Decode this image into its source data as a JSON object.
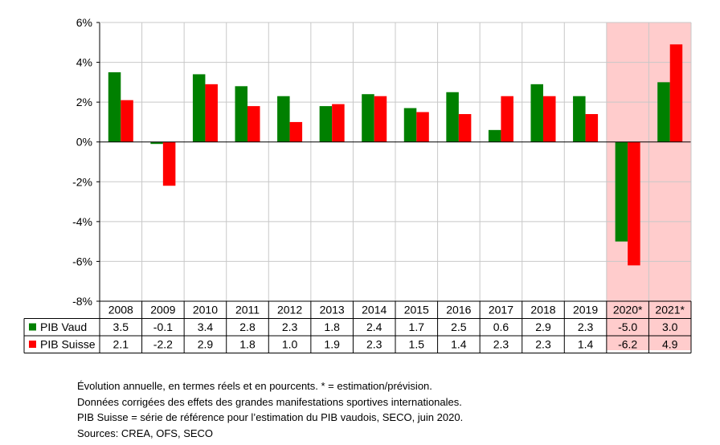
{
  "chart_data": {
    "type": "bar",
    "categories": [
      "2008",
      "2009",
      "2010",
      "2011",
      "2012",
      "2013",
      "2014",
      "2015",
      "2016",
      "2017",
      "2018",
      "2019",
      "2020*",
      "2021*"
    ],
    "series": [
      {
        "name": "PIB Vaud",
        "color": "#008000",
        "values": [
          3.5,
          -0.1,
          3.4,
          2.8,
          2.3,
          1.8,
          2.4,
          1.7,
          2.5,
          0.6,
          2.9,
          2.3,
          -5.0,
          3.0
        ],
        "labels": [
          "3.5",
          "-0.1",
          "3.4",
          "2.8",
          "2.3",
          "1.8",
          "2.4",
          "1.7",
          "2.5",
          "0.6",
          "2.9",
          "2.3",
          "-5.0",
          "3.0"
        ]
      },
      {
        "name": "PIB Suisse",
        "color": "#ff0000",
        "values": [
          2.1,
          -2.2,
          2.9,
          1.8,
          1.0,
          1.9,
          2.3,
          1.5,
          1.4,
          2.3,
          2.3,
          1.4,
          -6.2,
          4.9
        ],
        "labels": [
          "2.1",
          "-2.2",
          "2.9",
          "1.8",
          "1.0",
          "1.9",
          "2.3",
          "1.5",
          "1.4",
          "2.3",
          "2.3",
          "1.4",
          "-6.2",
          "4.9"
        ]
      }
    ],
    "ylim": [
      -8,
      6
    ],
    "yticks": [
      -8,
      -6,
      -4,
      -2,
      0,
      2,
      4,
      6
    ],
    "yticklabels": [
      "-8%",
      "-6%",
      "-4%",
      "-2%",
      "0%",
      "2%",
      "4%",
      "6%"
    ],
    "highlight_categories": [
      "2020*",
      "2021*"
    ],
    "highlight_color": "#ffcccc",
    "grid": true,
    "legend": "data-table"
  },
  "notes": [
    "Évolution annuelle, en termes réels et en pourcents. * = estimation/prévision.",
    "Données corrigées des effets des grandes manifestations sportives internationales.",
    "PIB Suisse = série de référence pour l’estimation du PIB vaudois, SECO, juin 2020.",
    "Sources: CREA, OFS, SECO"
  ]
}
